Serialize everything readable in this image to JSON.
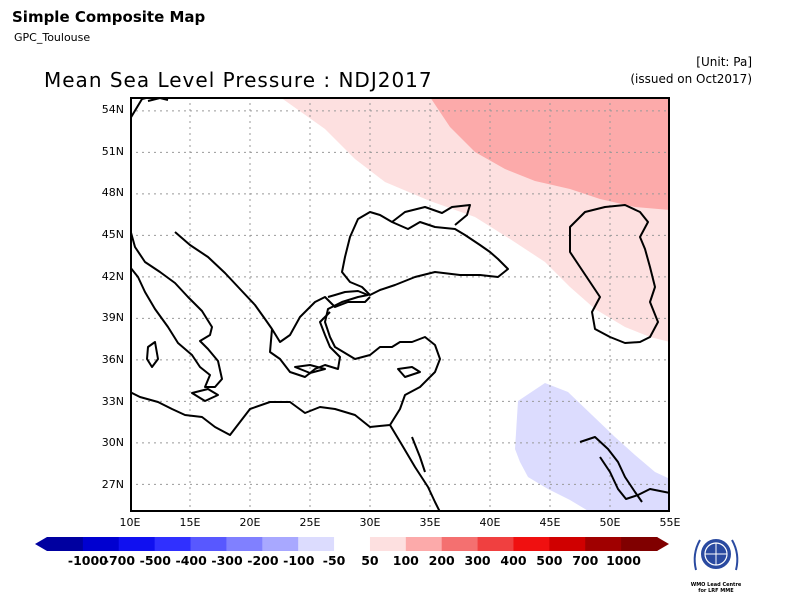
{
  "header": {
    "app_title": "Simple Composite Map",
    "source": "GPC_Toulouse",
    "map_title": "Mean Sea Level Pressure : NDJ2017",
    "unit": "[Unit: Pa]",
    "issued": "(issued on Oct2017)"
  },
  "map": {
    "lat_labels": [
      "54N",
      "51N",
      "48N",
      "45N",
      "42N",
      "39N",
      "36N",
      "33N",
      "30N",
      "27N"
    ],
    "lon_labels": [
      "10E",
      "15E",
      "20E",
      "25E",
      "30E",
      "35E",
      "40E",
      "45E",
      "50E",
      "55E"
    ],
    "extent": {
      "lon_min": 10,
      "lon_max": 55,
      "lat_min": 25,
      "lat_max": 55
    },
    "graticule": "dotted"
  },
  "colorbar": {
    "labels": [
      "-1000",
      "-700",
      "-500",
      "-400",
      "-300",
      "-200",
      "-100",
      "-50",
      "50",
      "100",
      "200",
      "300",
      "400",
      "500",
      "700",
      "1000"
    ],
    "colors": [
      "#0000a0",
      "#0000d0",
      "#1010f0",
      "#3030ff",
      "#5858ff",
      "#8080ff",
      "#a8a8ff",
      "#dcdcfe",
      "#ffffff",
      "#fde0e0",
      "#fcaaaa",
      "#f47070",
      "#f04040",
      "#f01010",
      "#d00000",
      "#a00000",
      "#800000"
    ]
  },
  "logo": {
    "icon": "wmo-emblem-icon",
    "text": "WMO Lead Centre for LRF MME"
  }
}
